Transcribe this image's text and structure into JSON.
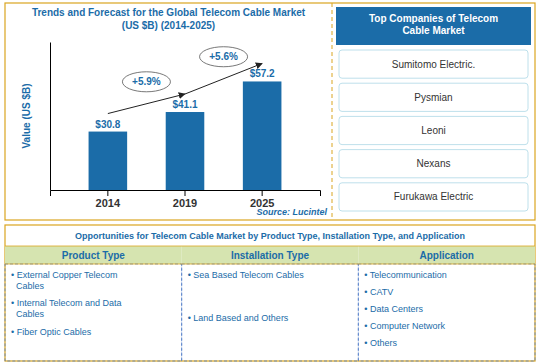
{
  "chart_data": {
    "type": "bar",
    "title": "Trends and Forecast for the Global Telecom Cable Market",
    "subtitle": "(US $B) (2014-2025)",
    "y_label": "Value (US $B)",
    "categories": [
      "2014",
      "2019",
      "2025"
    ],
    "values": [
      30.8,
      41.1,
      57.2
    ],
    "value_labels": [
      "$30.8",
      "$41.1",
      "$57.2"
    ],
    "data_labels": true,
    "color": "#1B6CA8",
    "ylim": [
      0,
      78
    ],
    "tick_labels": "x",
    "annotations": [
      "+5.9%",
      "+5.6%"
    ],
    "source": "Source: Lucintel"
  },
  "top_companies": {
    "title": "Top Companies of Telecom\nCable Market",
    "items": [
      "Sumitomo Electric.",
      "Pysmian",
      "Leoni",
      "Nexans",
      "Furukawa Electric"
    ]
  },
  "opportunities": {
    "title": "Opportunities for Telecom Cable Market by Product Type, Installation Type, and Application",
    "columns": [
      {
        "header": "Product Type",
        "items": [
          "• External Copper Telecom\n  Cables",
          "• Internal Telecom and Data\n  Cables",
          "• Fiber Optic Cables"
        ]
      },
      {
        "header": "Installation Type",
        "items": [
          "• Sea Based Telecom Cables",
          "• Land Based and Others"
        ]
      },
      {
        "header": "Application",
        "items": [
          "• Telecommunication",
          "• CATV",
          "• Data Centers",
          "• Computer Network",
          "• Others"
        ]
      }
    ]
  }
}
